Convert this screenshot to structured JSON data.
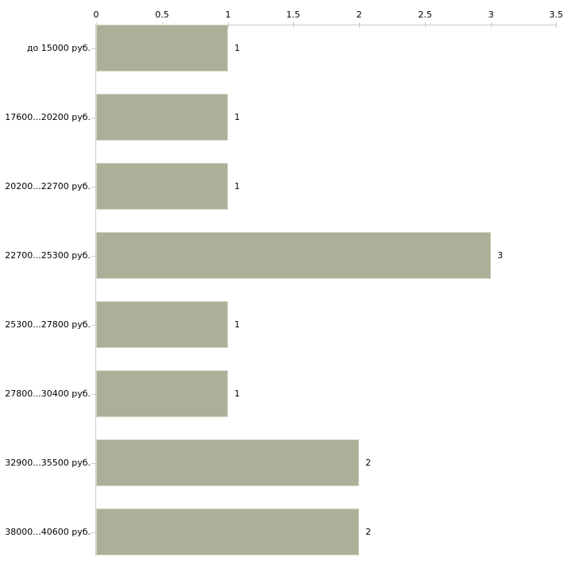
{
  "chart_data": {
    "type": "bar",
    "orientation": "horizontal",
    "title": "",
    "xlabel": "",
    "ylabel": "",
    "categories": [
      "до 15000 руб.",
      "17600...20200 руб.",
      "20200...22700 руб.",
      "22700...25300 руб.",
      "25300...27800 руб.",
      "27800...30400 руб.",
      "32900...35500 руб.",
      "38000...40600 руб."
    ],
    "values": [
      1,
      1,
      1,
      3,
      1,
      1,
      2,
      2
    ],
    "value_labels": [
      "1",
      "1",
      "1",
      "3",
      "1",
      "1",
      "2",
      "2"
    ],
    "x_ticks": [
      0,
      0.5,
      1,
      1.5,
      2,
      2.5,
      3,
      3.5
    ],
    "x_tick_labels": [
      "0",
      "0.5",
      "1",
      "1.5",
      "2",
      "2.5",
      "3",
      "3.5"
    ],
    "xlim": [
      0,
      3.5
    ],
    "axis_position": "top",
    "grid": false,
    "legend": false,
    "colors": {
      "bar_fill": "#abb199",
      "bar_border": "#d4d8c6",
      "axis_line": "#c8c8c8",
      "x_tick_mark": "#cbd0b6",
      "text": "#000000",
      "background": "#ffffff"
    }
  }
}
